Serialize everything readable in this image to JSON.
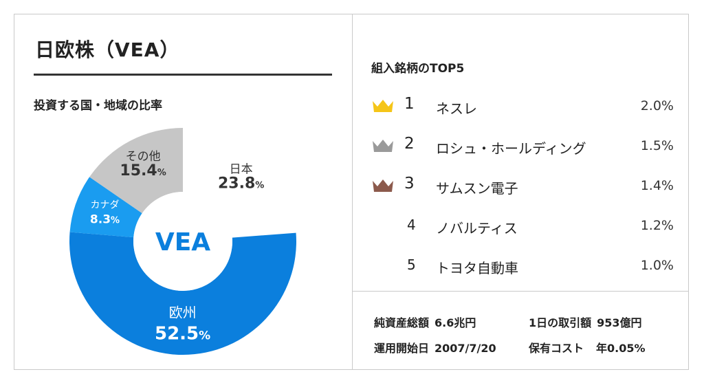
{
  "title": "日欧株（VEA）",
  "allocation": {
    "subtitle": "投資する国・地域の比率",
    "center_label": "VEA",
    "segments": [
      {
        "name": "日本",
        "value": 23.8,
        "pct_label": "23.8",
        "color": "#ffffff",
        "text_color": "#333333"
      },
      {
        "name": "欧州",
        "value": 52.5,
        "pct_label": "52.5",
        "color": "#0b7fdd",
        "text_color": "#ffffff"
      },
      {
        "name": "カナダ",
        "value": 8.3,
        "pct_label": "8.3",
        "color": "#1a9cf0",
        "text_color": "#ffffff"
      },
      {
        "name": "その他",
        "value": 15.4,
        "pct_label": "15.4",
        "color": "#c6c6c6",
        "text_color": "#333333"
      }
    ],
    "percent_sign": "%"
  },
  "top5": {
    "title": "組入銘柄のTOP5",
    "items": [
      {
        "rank": "1",
        "name": "ネスレ",
        "pct": "2.0%",
        "crown_color": "#f5c518"
      },
      {
        "rank": "2",
        "name": "ロシュ・ホールディング",
        "pct": "1.5%",
        "crown_color": "#9a9a9a"
      },
      {
        "rank": "3",
        "name": "サムスン電子",
        "pct": "1.4%",
        "crown_color": "#8c5a4c"
      },
      {
        "rank": "4",
        "name": "ノバルティス",
        "pct": "1.2%"
      },
      {
        "rank": "5",
        "name": "トヨタ自動車",
        "pct": "1.0%"
      }
    ]
  },
  "stats": {
    "net_assets_label": "純資産総額",
    "net_assets_value": "6.6兆円",
    "daily_volume_label": "1日の取引額",
    "daily_volume_value": "953億円",
    "inception_label": "運用開始日",
    "inception_value": "2007/7/20",
    "expense_label": "保有コスト",
    "expense_value": "年0.05%"
  },
  "colors": {
    "border": "#c9c9c9",
    "accent_blue": "#0b7fdd"
  }
}
